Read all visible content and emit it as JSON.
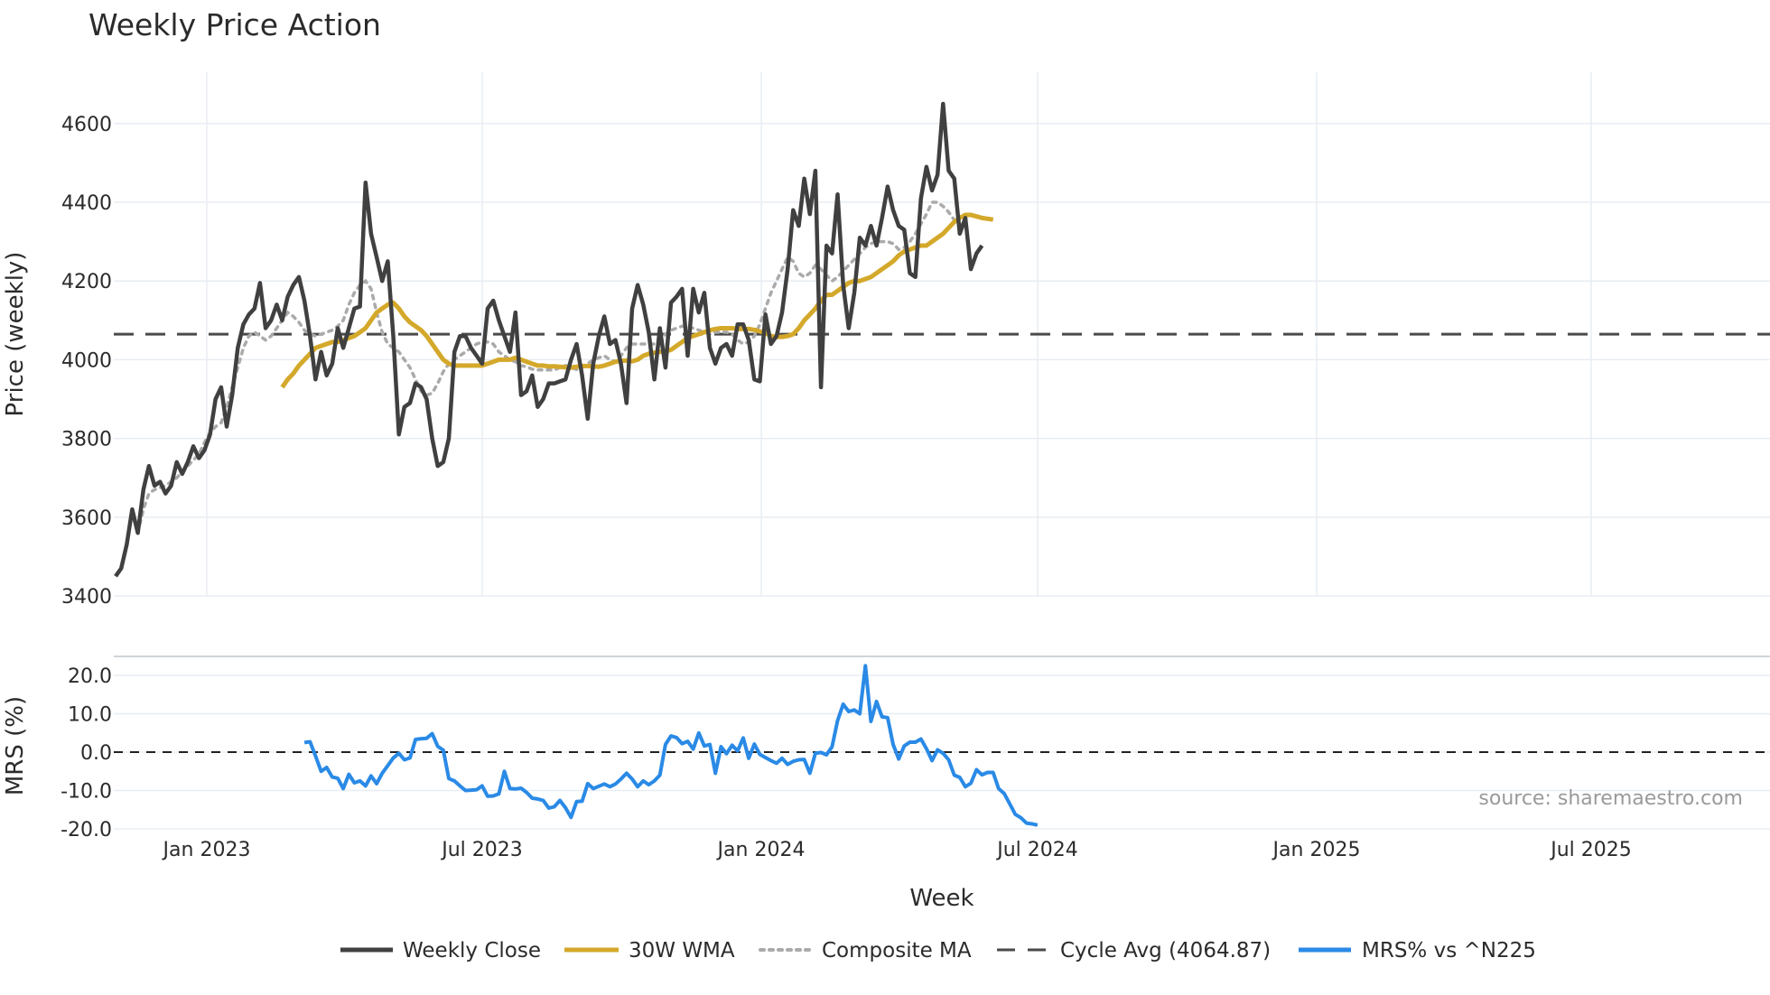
{
  "chart_data": {
    "type": "line",
    "title": "Weekly Price Action",
    "xlabel": "Week",
    "x_ticks": [
      "Jan 2023",
      "Jul 2023",
      "Jan 2024",
      "Jul 2024",
      "Jan 2025",
      "Jul 2025"
    ],
    "price_panel": {
      "ylabel": "Price (weekly)",
      "ylim": [
        3400,
        4700
      ],
      "y_ticks": [
        "3400",
        "3600",
        "3800",
        "4000",
        "4200",
        "4400",
        "4600"
      ],
      "cycle_avg": 4064.87
    },
    "mrs_panel": {
      "ylabel": "MRS (%)",
      "ylim": [
        -21.5,
        25
      ],
      "y_ticks": [
        "-20.0",
        "-10.0",
        "0.0",
        "10.0",
        "20.0"
      ]
    },
    "series": [
      {
        "name": "Weekly Close",
        "color": "#404040",
        "style": "solid",
        "values": [
          3450,
          3470,
          3530,
          3620,
          3560,
          3670,
          3730,
          3680,
          3690,
          3660,
          3680,
          3740,
          3710,
          3740,
          3780,
          3750,
          3770,
          3810,
          3900,
          3930,
          3830,
          3910,
          4030,
          4090,
          4115,
          4130,
          4195,
          4080,
          4100,
          4140,
          4100,
          4160,
          4190,
          4210,
          4150,
          4060,
          3950,
          4020,
          3960,
          3990,
          4080,
          4030,
          4080,
          4130,
          4135,
          4450,
          4320,
          4260,
          4200,
          4250,
          4060,
          3810,
          3880,
          3890,
          3940,
          3930,
          3900,
          3800,
          3730,
          3740,
          3800,
          4020,
          4060,
          4060,
          4030,
          4010,
          3990,
          4130,
          4150,
          4100,
          4060,
          4020,
          4120,
          3910,
          3920,
          3960,
          3880,
          3900,
          3940,
          3940,
          3945,
          3950,
          4000,
          4040,
          3960,
          3850,
          3990,
          4060,
          4110,
          4040,
          4050,
          3990,
          3890,
          4130,
          4190,
          4140,
          4070,
          3950,
          4080,
          3980,
          4145,
          4160,
          4180,
          4010,
          4180,
          4120,
          4170,
          4030,
          3990,
          4030,
          4040,
          4010,
          4090,
          4090,
          4050,
          3950,
          3945,
          4115,
          4040,
          4060,
          4120,
          4230,
          4380,
          4340,
          4460,
          4370,
          4480,
          3930,
          4290,
          4270,
          4420,
          4190,
          4080,
          4170,
          4310,
          4290,
          4340,
          4290,
          4360,
          4440,
          4380,
          4340,
          4330,
          4220,
          4210,
          4410,
          4490,
          4430,
          4470,
          4650,
          4480,
          4460,
          4320,
          4360,
          4230,
          4270,
          4290
        ]
      },
      {
        "name": "30W WMA",
        "color": "#d4a82a",
        "style": "solid",
        "start_index": 30,
        "values": [
          3930,
          3950,
          3965,
          3985,
          4000,
          4015,
          4030,
          4035,
          4040,
          4045,
          4045,
          4050,
          4055,
          4060,
          4070,
          4080,
          4100,
          4120,
          4130,
          4140,
          4145,
          4130,
          4110,
          4095,
          4085,
          4075,
          4060,
          4040,
          4020,
          4000,
          3990,
          3985,
          3985,
          3985,
          3985,
          3985,
          3985,
          3990,
          3995,
          4000,
          4000,
          4000,
          4005,
          4000,
          3995,
          3990,
          3985,
          3985,
          3983,
          3983,
          3982,
          3981,
          3980,
          3982,
          3984,
          3984,
          3983,
          3982,
          3985,
          3990,
          3995,
          3997,
          3998,
          3996,
          4000,
          4010,
          4015,
          4018,
          4020,
          4022,
          4025,
          4035,
          4045,
          4055,
          4060,
          4065,
          4070,
          4075,
          4078,
          4080,
          4080,
          4080,
          4078,
          4078,
          4078,
          4076,
          4072,
          4068,
          4060,
          4058,
          4058,
          4060,
          4065,
          4080,
          4100,
          4115,
          4130,
          4150,
          4165,
          4165,
          4175,
          4185,
          4195,
          4200,
          4200,
          4205,
          4210,
          4220,
          4230,
          4240,
          4250,
          4265,
          4275,
          4280,
          4285,
          4290,
          4290,
          4300,
          4310,
          4320,
          4335,
          4350,
          4360,
          4368,
          4368,
          4364,
          4360,
          4358,
          4356
        ]
      },
      {
        "name": "Composite MA",
        "color": "#aaaaaa",
        "style": "dotted",
        "start_index": 4,
        "values": [
          3560,
          3620,
          3660,
          3670,
          3675,
          3680,
          3690,
          3700,
          3715,
          3730,
          3745,
          3760,
          3790,
          3815,
          3830,
          3840,
          3880,
          3930,
          3980,
          4030,
          4060,
          4070,
          4060,
          4050,
          4060,
          4080,
          4100,
          4120,
          4110,
          4095,
          4075,
          4065,
          4060,
          4065,
          4070,
          4075,
          4085,
          4100,
          4140,
          4170,
          4190,
          4200,
          4180,
          4120,
          4070,
          4040,
          4030,
          4020,
          4000,
          3980,
          3950,
          3920,
          3910,
          3915,
          3940,
          3970,
          3990,
          4000,
          4010,
          4020,
          4030,
          4040,
          4045,
          4045,
          4040,
          4020,
          4010,
          4000,
          3995,
          3985,
          3982,
          3976,
          3974,
          3974,
          3974,
          3974,
          3980,
          3985,
          3980,
          3975,
          3980,
          3990,
          4000,
          4005,
          4010,
          4000,
          3995,
          4010,
          4030,
          4040,
          4040,
          4040,
          4040,
          4040,
          4050,
          4065,
          4075,
          4080,
          4085,
          4085,
          4080,
          4075,
          4070,
          4065,
          4070,
          4070,
          4070,
          4065,
          4050,
          4040,
          4045,
          4060,
          4090,
          4130,
          4170,
          4200,
          4230,
          4260,
          4250,
          4220,
          4210,
          4220,
          4240,
          4230,
          4215,
          4200,
          4210,
          4225,
          4240,
          4255,
          4270,
          4285,
          4295,
          4300,
          4300,
          4300,
          4295,
          4280,
          4285,
          4300,
          4320,
          4345,
          4370,
          4400,
          4400,
          4390,
          4375,
          4355,
          4345,
          4340
        ]
      },
      {
        "name": "Cycle Avg (4064.87)",
        "color": "#4a4a4a",
        "style": "dashed",
        "value": 4064.87
      },
      {
        "name": "MRS% vs ^N225",
        "color": "#2a8ae6",
        "style": "solid",
        "start_index": 34,
        "values": [
          2.5,
          2.7,
          -1,
          -5,
          -4,
          -6.5,
          -6.8,
          -9.5,
          -5.8,
          -8,
          -7.5,
          -8.8,
          -6.2,
          -8.2,
          -5.5,
          -3.5,
          -1.5,
          -0.3,
          -2,
          -1.5,
          3.3,
          3.5,
          3.6,
          4.8,
          1.5,
          0.5,
          -6.9,
          -7.5,
          -8.8,
          -10,
          -9.9,
          -9.8,
          -8.8,
          -11.5,
          -11.4,
          -10.9,
          -5,
          -9.5,
          -9.6,
          -9.4,
          -10.5,
          -12,
          -12.2,
          -12.6,
          -14.6,
          -14.2,
          -12.6,
          -14.5,
          -17,
          -12.9,
          -12.8,
          -8.2,
          -9.5,
          -8.9,
          -8.3,
          -9,
          -8.3,
          -7,
          -5.5,
          -7,
          -9,
          -7.5,
          -8.5,
          -7.5,
          -6,
          2,
          4.2,
          3.8,
          2.2,
          2.8,
          0.8,
          5,
          1.6,
          2,
          -5.5,
          1.4,
          -0.4,
          1.8,
          0.3,
          3.7,
          -1.6,
          2.1,
          -0.6,
          -1.4,
          -2.2,
          -2.9,
          -1.6,
          -3.2,
          -2.4,
          -2,
          -1.9,
          -5.5,
          -0.3,
          -0.1,
          -0.7,
          1.4,
          8.2,
          12.5,
          10.6,
          11,
          10,
          22.5,
          8,
          13.2,
          9.2,
          9,
          2,
          -1.8,
          1.6,
          2.6,
          2.6,
          3.4,
          0.9,
          -2.2,
          0.6,
          -0.3,
          -2,
          -6,
          -6.6,
          -9,
          -8.1,
          -4.6,
          -5.9,
          -5.3,
          -5.3,
          -9.5,
          -10.8,
          -13.5,
          -16.2,
          -17.1,
          -18.5,
          -18.7,
          -19
        ]
      }
    ],
    "legend_position": "bottom",
    "source_text": "source: sharemaestro.com"
  }
}
